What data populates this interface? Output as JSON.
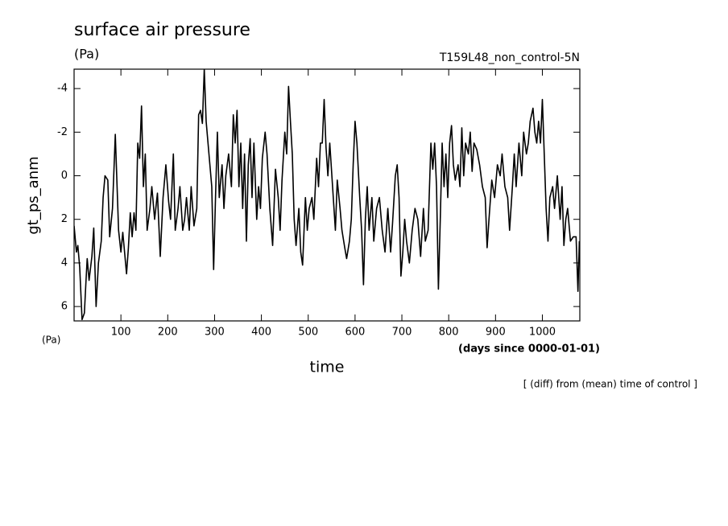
{
  "chart_data": {
    "type": "line",
    "title": "surface air pressure",
    "subtitle": "(Pa)",
    "annotation_right": "T159L48_non_control-5N",
    "ylabel": "gt_ps_anm",
    "yunit": "(Pa)",
    "xunit": "(days since 0000-01-01)",
    "xlabel": "time",
    "footnote": "[ (diff) from (mean) time of control ]",
    "xlim": [
      0,
      1080
    ],
    "ylim": [
      -4.89,
      6.66
    ],
    "y_reversed": true,
    "xticks": [
      100,
      200,
      300,
      400,
      500,
      600,
      700,
      800,
      900,
      1000
    ],
    "yticks": [
      -4,
      -2,
      0,
      2,
      4,
      6
    ],
    "series": [
      {
        "color": "#000000",
        "x": [
          0,
          5,
          8,
          12,
          17,
          22,
          25,
          28,
          32,
          38,
          42,
          47,
          52,
          58,
          62,
          66,
          72,
          76,
          82,
          88,
          95,
          100,
          104,
          112,
          116,
          120,
          124,
          128,
          132,
          136,
          140,
          144,
          148,
          152,
          156,
          162,
          166,
          172,
          178,
          184,
          190,
          196,
          202,
          206,
          212,
          216,
          222,
          226,
          232,
          236,
          240,
          246,
          250,
          256,
          262,
          266,
          270,
          274,
          278,
          282,
          290,
          294,
          298,
          302,
          306,
          310,
          316,
          320,
          324,
          330,
          336,
          340,
          344,
          348,
          352,
          356,
          360,
          364,
          368,
          372,
          376,
          380,
          384,
          390,
          394,
          398,
          402,
          408,
          412,
          418,
          424,
          430,
          436,
          440,
          444,
          450,
          454,
          458,
          462,
          466,
          470,
          474,
          480,
          484,
          488,
          494,
          498,
          502,
          508,
          512,
          518,
          522,
          526,
          530,
          534,
          538,
          542,
          546,
          552,
          558,
          562,
          568,
          572,
          578,
          582,
          588,
          592,
          596,
          600,
          604,
          610,
          614,
          618,
          622,
          626,
          630,
          636,
          640,
          646,
          652,
          658,
          664,
          670,
          676,
          680,
          686,
          690,
          694,
          698,
          702,
          706,
          710,
          716,
          722,
          728,
          734,
          740,
          746,
          750,
          756,
          762,
          766,
          770,
          774,
          778,
          782,
          786,
          790,
          794,
          798,
          802,
          806,
          810,
          814,
          820,
          824,
          828,
          832,
          836,
          842,
          846,
          850,
          854,
          860,
          866,
          872,
          878,
          882,
          886,
          892,
          898,
          904,
          910,
          914,
          920,
          926,
          930,
          936,
          940,
          944,
          950,
          956,
          960,
          966,
          970,
          974,
          980,
          984,
          988,
          992,
          996,
          1000,
          1004,
          1008,
          1012,
          1016,
          1022,
          1026,
          1032,
          1038,
          1042,
          1046,
          1050,
          1054,
          1060,
          1066,
          1072,
          1076,
          1079
        ],
        "values": [
          2.3,
          3.5,
          3.2,
          4.2,
          6.6,
          6.3,
          5.0,
          3.8,
          4.8,
          3.7,
          2.4,
          6.0,
          4.0,
          3.0,
          1.0,
          0,
          0.2,
          2.8,
          1.5,
          -1.9,
          2.5,
          3.5,
          2.6,
          4.5,
          3.3,
          1.7,
          2.8,
          1.7,
          2.5,
          -1.5,
          -0.8,
          -3.2,
          0.5,
          -1.0,
          2.5,
          1.5,
          0.5,
          2,
          0.8,
          3.7,
          1,
          -0.5,
          1.2,
          2.0,
          -1.0,
          2.5,
          1.5,
          0.5,
          2.5,
          2.0,
          1.0,
          2.5,
          0.5,
          2.3,
          1.5,
          -2.8,
          -3.0,
          -2.4,
          -4.9,
          -2.5,
          -0.5,
          0.5,
          4.3,
          1,
          -2.0,
          1,
          -0.5,
          1.5,
          0,
          -1,
          0.5,
          -2.8,
          -1.5,
          -3,
          0.5,
          -1.5,
          1.5,
          -1,
          3,
          -0.5,
          -1.7,
          1,
          -1.5,
          2,
          0.5,
          1.5,
          -0.8,
          -2,
          -1.0,
          1.5,
          3.2,
          -0.3,
          1.0,
          2.5,
          0.2,
          -2,
          -1,
          -4.1,
          -2.5,
          -1,
          2,
          3.2,
          1.5,
          3.5,
          4.1,
          1,
          2.5,
          1.5,
          1,
          2,
          -0.8,
          0.5,
          -1.5,
          -1.5,
          -3.5,
          -1.3,
          0,
          -1.5,
          0.5,
          2.5,
          0.2,
          1.5,
          2.5,
          3.3,
          3.8,
          3,
          2.0,
          -0.5,
          -2.5,
          -1.5,
          1,
          2.5,
          5.0,
          2,
          0.5,
          2.5,
          1,
          3,
          1.5,
          1,
          2.5,
          3.5,
          1.5,
          3.5,
          2.2,
          0,
          -0.5,
          1,
          4.6,
          3.5,
          2,
          3,
          4,
          2.5,
          1.5,
          2,
          3.7,
          1.5,
          3,
          2.5,
          -1.5,
          -0.3,
          -1.5,
          0.5,
          5.2,
          2,
          -1.5,
          0.5,
          -1,
          1,
          -1.5,
          -2.3,
          -0.5,
          0.2,
          -0.5,
          0.5,
          -2.2,
          0,
          -1.5,
          -1,
          -2,
          -0.2,
          -1.5,
          -1.2,
          -0.5,
          0.5,
          1,
          3.3,
          2,
          0.2,
          1.0,
          -0.5,
          0,
          -1,
          0.5,
          1,
          2.5,
          0.5,
          -1.0,
          0.5,
          -1.5,
          0,
          -2,
          -1,
          -1.5,
          -2.5,
          -3.1,
          -2,
          -1.5,
          -2.5,
          -1.5,
          -3.5,
          -1,
          1.5,
          3,
          1,
          0.5,
          1.5,
          0,
          2,
          0.5,
          3.2,
          2,
          1.5,
          3,
          2.8,
          2.8,
          5.3,
          3
        ]
      }
    ]
  }
}
